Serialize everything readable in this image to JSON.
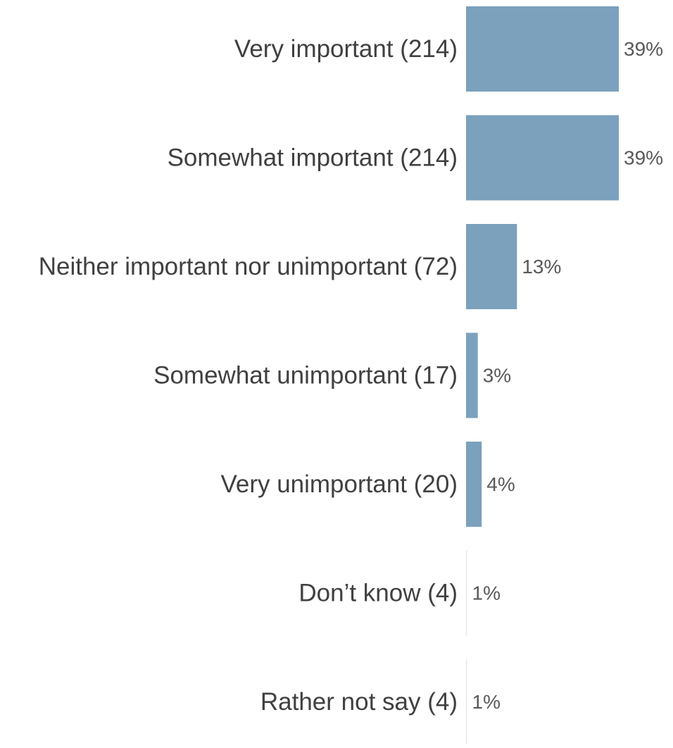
{
  "chart_data": {
    "type": "bar",
    "orientation": "horizontal",
    "categories": [
      "Very important (214)",
      "Somewhat important (214)",
      "Neither important nor unimportant (72)",
      "Somewhat unimportant (17)",
      "Very unimportant (20)",
      "Don’t know (4)",
      "Rather not say (4)"
    ],
    "values": [
      39,
      39,
      13,
      3,
      4,
      1,
      1
    ],
    "data_labels": [
      "39%",
      "39%",
      "13%",
      "3%",
      "4%",
      "1%",
      "1%"
    ],
    "unit": "%",
    "xlim": [
      0,
      39
    ],
    "title": "",
    "xlabel": "",
    "ylabel": "",
    "grid": false,
    "legend": "none",
    "bar_color": "#7ba1bd",
    "category_text_color": "#404040",
    "value_text_color": "#595959"
  }
}
